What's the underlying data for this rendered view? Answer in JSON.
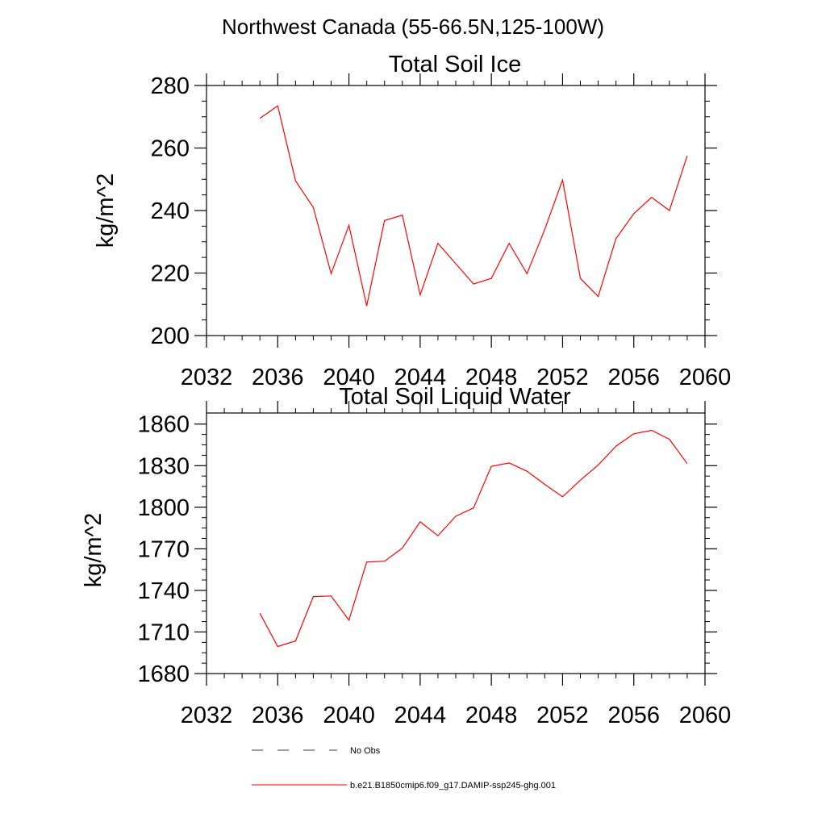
{
  "figure_title": "Northwest Canada (55-66.5N,125-100W)",
  "chart_data": [
    {
      "type": "line",
      "title": "Total Soil Ice",
      "xlabel": "",
      "ylabel": "kg/m^2",
      "xlim": [
        2032,
        2060
      ],
      "ylim": [
        200,
        280
      ],
      "x_ticks": [
        "2032",
        "2036",
        "2040",
        "2044",
        "2048",
        "2052",
        "2056",
        "2060"
      ],
      "y_ticks": [
        "200",
        "220",
        "240",
        "260",
        "280"
      ],
      "grid": false,
      "series": [
        {
          "name": "b.e21.B1850cmip6.f09_g17.DAMIP-ssp245-ghg.001",
          "color": "#ff0000",
          "x": [
            2035,
            2036,
            2037,
            2038,
            2039,
            2040,
            2041,
            2042,
            2043,
            2044,
            2045,
            2046,
            2047,
            2048,
            2049,
            2050,
            2051,
            2052,
            2053,
            2054,
            2055,
            2056,
            2057,
            2058,
            2059
          ],
          "y": [
            269.5,
            273.5,
            249.5,
            241,
            219.8,
            235.3,
            209.5,
            236.8,
            238.5,
            213,
            229.5,
            223,
            216.5,
            218.3,
            229.5,
            219.8,
            234,
            249.8,
            218.3,
            212.5,
            231,
            239,
            244.2,
            240,
            257.5
          ]
        }
      ]
    },
    {
      "type": "line",
      "title": "Total Soil Liquid Water",
      "xlabel": "",
      "ylabel": "kg/m^2",
      "xlim": [
        2032,
        2060
      ],
      "ylim": [
        1680,
        1868
      ],
      "x_ticks": [
        "2032",
        "2036",
        "2040",
        "2044",
        "2048",
        "2052",
        "2056",
        "2060"
      ],
      "y_ticks": [
        "1680",
        "1710",
        "1740",
        "1770",
        "1800",
        "1830",
        "1860"
      ],
      "grid": false,
      "series": [
        {
          "name": "b.e21.B1850cmip6.f09_g17.DAMIP-ssp245-ghg.001",
          "color": "#ff0000",
          "x": [
            2035,
            2036,
            2037,
            2038,
            2039,
            2040,
            2041,
            2042,
            2043,
            2044,
            2045,
            2046,
            2047,
            2048,
            2049,
            2050,
            2051,
            2052,
            2053,
            2054,
            2055,
            2056,
            2057,
            2058,
            2059
          ],
          "y": [
            1723.5,
            1699.5,
            1703.5,
            1735.5,
            1736,
            1718.5,
            1760.5,
            1761,
            1770.5,
            1789.5,
            1779.5,
            1793.5,
            1799.5,
            1829.5,
            1832,
            1826,
            1816.5,
            1807.5,
            1819.5,
            1830.5,
            1844,
            1853,
            1855.5,
            1849,
            1831.5
          ]
        }
      ]
    }
  ],
  "legend": [
    {
      "label": "No Obs",
      "color": "#3a3a7a",
      "dash": true
    },
    {
      "label": "b.e21.B1850cmip6.f09_g17.DAMIP-ssp245-ghg.001",
      "color": "#ff0000",
      "dash": false
    }
  ]
}
